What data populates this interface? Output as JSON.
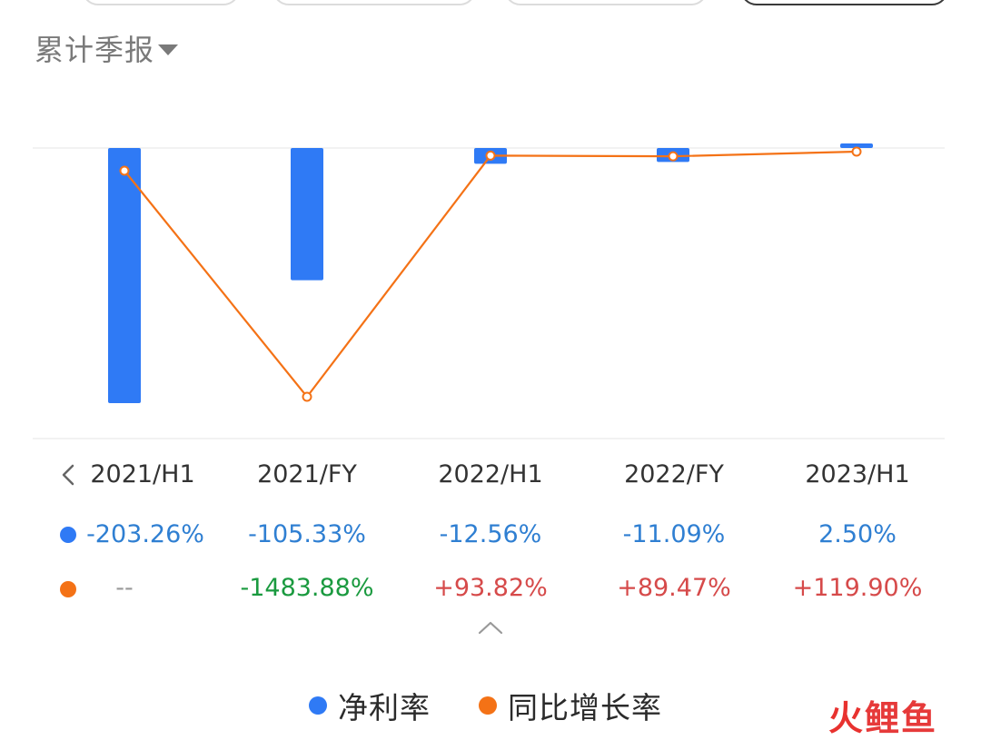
{
  "period_selector": {
    "label": "累计季报"
  },
  "colors": {
    "net_margin": "#2f7af5",
    "yoy_growth": "#f47216",
    "positive": "#d64a4a",
    "negative": "#1a9a3f",
    "blue_text": "#2f7fd2"
  },
  "icons": {
    "prev": "chevron-left-icon",
    "collapse": "chevron-up-icon",
    "dropdown": "caret-down-icon"
  },
  "chart_data": {
    "type": "bar",
    "categories": [
      "2021/H1",
      "2021/FY",
      "2022/H1",
      "2022/FY",
      "2023/H1"
    ],
    "series": [
      {
        "name": "净利率",
        "type": "bar",
        "values": [
          -203.26,
          -105.33,
          -12.56,
          -11.09,
          2.5
        ]
      },
      {
        "name": "同比增长率",
        "type": "line",
        "values": [
          null,
          -1483.88,
          93.82,
          89.47,
          119.9
        ]
      }
    ],
    "legend": "bottom-center",
    "grid": false
  },
  "table": {
    "categories": [
      "2021/H1",
      "2021/FY",
      "2022/H1",
      "2022/FY",
      "2023/H1"
    ],
    "net_margin_text": [
      "-203.26%",
      "-105.33%",
      "-12.56%",
      "-11.09%",
      "2.50%"
    ],
    "yoy_text": [
      "--",
      "-1483.88%",
      "+93.82%",
      "+89.47%",
      "+119.90%"
    ]
  },
  "legend": {
    "items": [
      "净利率",
      "同比增长率"
    ]
  },
  "watermark": {
    "fire": "火",
    "rest": "鲤鱼"
  }
}
